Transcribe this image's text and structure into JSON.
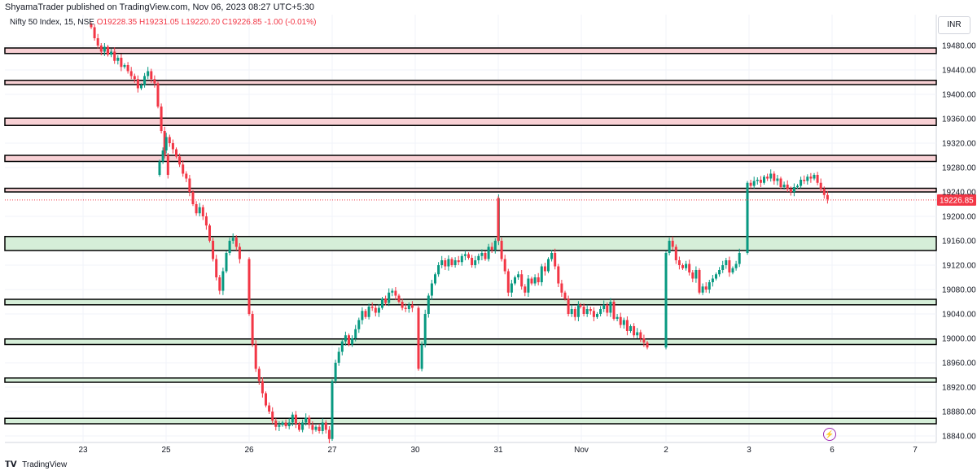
{
  "header": {
    "published": "ShyamaTrader published on TradingView.com, Nov 06, 2023 08:27 UTC+5:30"
  },
  "legend": {
    "symbol": "Nifty 50 Index, 15, NSE",
    "open": "O19228.35",
    "high": "H19231.05",
    "low": "L19220.20",
    "close": "C19226.85",
    "change": "-1.00 (-0.01%)"
  },
  "currency": "INR",
  "footer": {
    "brand": "TradingView"
  },
  "colors": {
    "up": "#089981",
    "down": "#f23645",
    "resistance": "#f8d0d4",
    "support": "#d5eed8"
  },
  "chart_data": {
    "type": "candlestick",
    "symbol": "Nifty 50 Index",
    "interval": "15",
    "exchange": "NSE",
    "last_price": 19226.85,
    "last_price_label": "19226.85",
    "ylim": [
      18820,
      19520
    ],
    "y_ticks": [
      18840,
      18880,
      18920,
      18960,
      19000,
      19040,
      19080,
      19120,
      19160,
      19200,
      19240,
      19280,
      19320,
      19360,
      19400,
      19440,
      19480
    ],
    "y_tick_labels": [
      "18840.00",
      "18880.00",
      "18920.00",
      "18960.00",
      "19000.00",
      "19040.00",
      "19080.00",
      "19120.00",
      "19160.00",
      "19200.00",
      "19240.00",
      "19280.00",
      "19320.00",
      "19360.00",
      "19400.00",
      "19440.00",
      "19480.00"
    ],
    "x_labels": [
      "23",
      "25",
      "26",
      "27",
      "30",
      "31",
      "Nov",
      "2",
      "3",
      "6",
      "7"
    ],
    "grid": true,
    "zones": [
      {
        "low": 19467,
        "high": 19476,
        "type": "resistance"
      },
      {
        "low": 19416,
        "high": 19423,
        "type": "resistance"
      },
      {
        "low": 19349,
        "high": 19361,
        "type": "resistance"
      },
      {
        "low": 19290,
        "high": 19300,
        "type": "resistance"
      },
      {
        "low": 19240,
        "high": 19246,
        "type": "resistance"
      },
      {
        "low": 19144,
        "high": 19167,
        "type": "support"
      },
      {
        "low": 19055,
        "high": 19064,
        "type": "support"
      },
      {
        "low": 18990,
        "high": 18999,
        "type": "support"
      },
      {
        "low": 18928,
        "high": 18935,
        "type": "support"
      },
      {
        "low": 18860,
        "high": 18869,
        "type": "support"
      }
    ],
    "sessions": [
      {
        "label": "23",
        "closes": [
          19510,
          19492,
          19480,
          19470,
          19478,
          19465,
          19470,
          19455,
          19460,
          19445,
          19448,
          19438,
          19430,
          19425,
          19410,
          19415,
          19430,
          19438,
          19425,
          19418,
          19380,
          19340,
          19300,
          19268
        ]
      },
      {
        "label": "25",
        "closes": [
          19290,
          19308,
          19330,
          19320,
          19310,
          19298,
          19285,
          19270,
          19262,
          19240,
          19220,
          19205,
          19215,
          19200,
          19185,
          19160,
          19130,
          19100,
          19078,
          19110,
          19140,
          19160,
          19165,
          19150,
          19130
        ]
      },
      {
        "label": "26",
        "closes": [
          19040,
          18990,
          18950,
          18930,
          18910,
          18890,
          18880,
          18865,
          18855,
          18858,
          18862,
          18856,
          18862,
          18875,
          18860,
          18850,
          18862,
          18870,
          18858,
          18850,
          18855,
          18848,
          18862,
          18850,
          18835
        ]
      },
      {
        "label": "27",
        "closes": [
          18930,
          18960,
          18978,
          18995,
          19005,
          18990,
          19000,
          19015,
          19030,
          19045,
          19035,
          19052,
          19050,
          19042,
          19050,
          19065,
          19058,
          19075,
          19078,
          19070,
          19060,
          19050,
          19048,
          19055,
          19050
        ]
      },
      {
        "label": "30",
        "closes": [
          18950,
          18990,
          19040,
          19070,
          19090,
          19105,
          19120,
          19128,
          19118,
          19130,
          19120,
          19128,
          19125,
          19135,
          19138,
          19132,
          19120,
          19128,
          19135,
          19140,
          19130,
          19150,
          19145,
          19160,
          19230
        ]
      },
      {
        "label": "31",
        "closes": [
          19160,
          19130,
          19110,
          19075,
          19090,
          19100,
          19105,
          19085,
          19075,
          19098,
          19090,
          19100,
          19092,
          19118,
          19110,
          19130,
          19140,
          19118,
          19090,
          19075,
          19065,
          19040,
          19048,
          19035,
          19055
        ]
      },
      {
        "label": "Nov",
        "closes": [
          19052,
          19040,
          19048,
          19045,
          19035,
          19040,
          19048,
          19055,
          19042,
          19060,
          19032,
          19035,
          19022,
          19030,
          19012,
          19020,
          19005,
          19010,
          19000,
          18993,
          18985
        ]
      },
      {
        "label": "2",
        "closes": [
          19140,
          19160,
          19150,
          19128,
          19120,
          19115,
          19122,
          19108,
          19098,
          19112,
          19075,
          19085,
          19080,
          19092,
          19098,
          19105,
          19112,
          19120,
          19128,
          19108,
          19115,
          19122,
          19140
        ]
      },
      {
        "label": "3",
        "closes": [
          19255,
          19250,
          19258,
          19260,
          19255,
          19265,
          19262,
          19270,
          19258,
          19262,
          19248,
          19252,
          19245,
          19240,
          19248,
          19250,
          19260,
          19258,
          19265,
          19262,
          19268,
          19255,
          19245,
          19235,
          19228
        ]
      }
    ]
  }
}
